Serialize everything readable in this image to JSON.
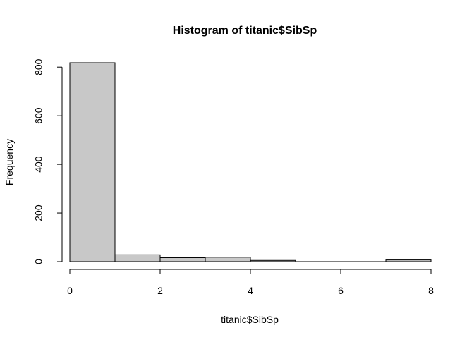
{
  "chart_data": {
    "type": "bar",
    "title": "Histogram of titanic$SibSp",
    "xlabel": "titanic$SibSp",
    "ylabel": "Frequency",
    "bins": [
      {
        "x0": 0,
        "x1": 1,
        "value": 818
      },
      {
        "x0": 1,
        "x1": 2,
        "value": 28
      },
      {
        "x0": 2,
        "x1": 3,
        "value": 16
      },
      {
        "x0": 3,
        "x1": 4,
        "value": 18
      },
      {
        "x0": 4,
        "x1": 5,
        "value": 5
      },
      {
        "x0": 5,
        "x1": 6,
        "value": 0
      },
      {
        "x0": 6,
        "x1": 7,
        "value": 0
      },
      {
        "x0": 7,
        "x1": 8,
        "value": 7
      }
    ],
    "xlim": [
      0,
      8
    ],
    "ylim": [
      0,
      818
    ],
    "x_ticks": [
      0,
      2,
      4,
      6,
      8
    ],
    "x_tick_labels": [
      "0",
      "2",
      "4",
      "6",
      "8"
    ],
    "y_ticks": [
      0,
      200,
      400,
      600,
      800
    ],
    "y_tick_labels": [
      "0",
      "200",
      "400",
      "600",
      "800"
    ],
    "bar_fill": "#c8c8c8",
    "bar_stroke": "#000000",
    "grid": false,
    "legend": "none"
  }
}
